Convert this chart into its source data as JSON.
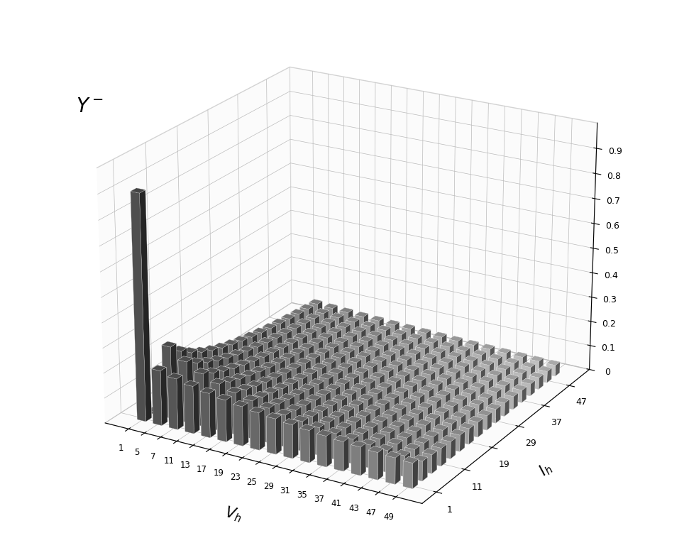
{
  "Vh_ticks": [
    1,
    5,
    7,
    11,
    13,
    17,
    19,
    23,
    25,
    29,
    31,
    35,
    37,
    41,
    43,
    47,
    49
  ],
  "Ih_ticks": [
    1,
    11,
    19,
    29,
    37,
    47
  ],
  "background_color": "#ffffff",
  "zlim": [
    0,
    1.0
  ],
  "elev": 22,
  "azim": -60,
  "figsize": [
    9.71,
    7.89
  ],
  "dpi": 100
}
